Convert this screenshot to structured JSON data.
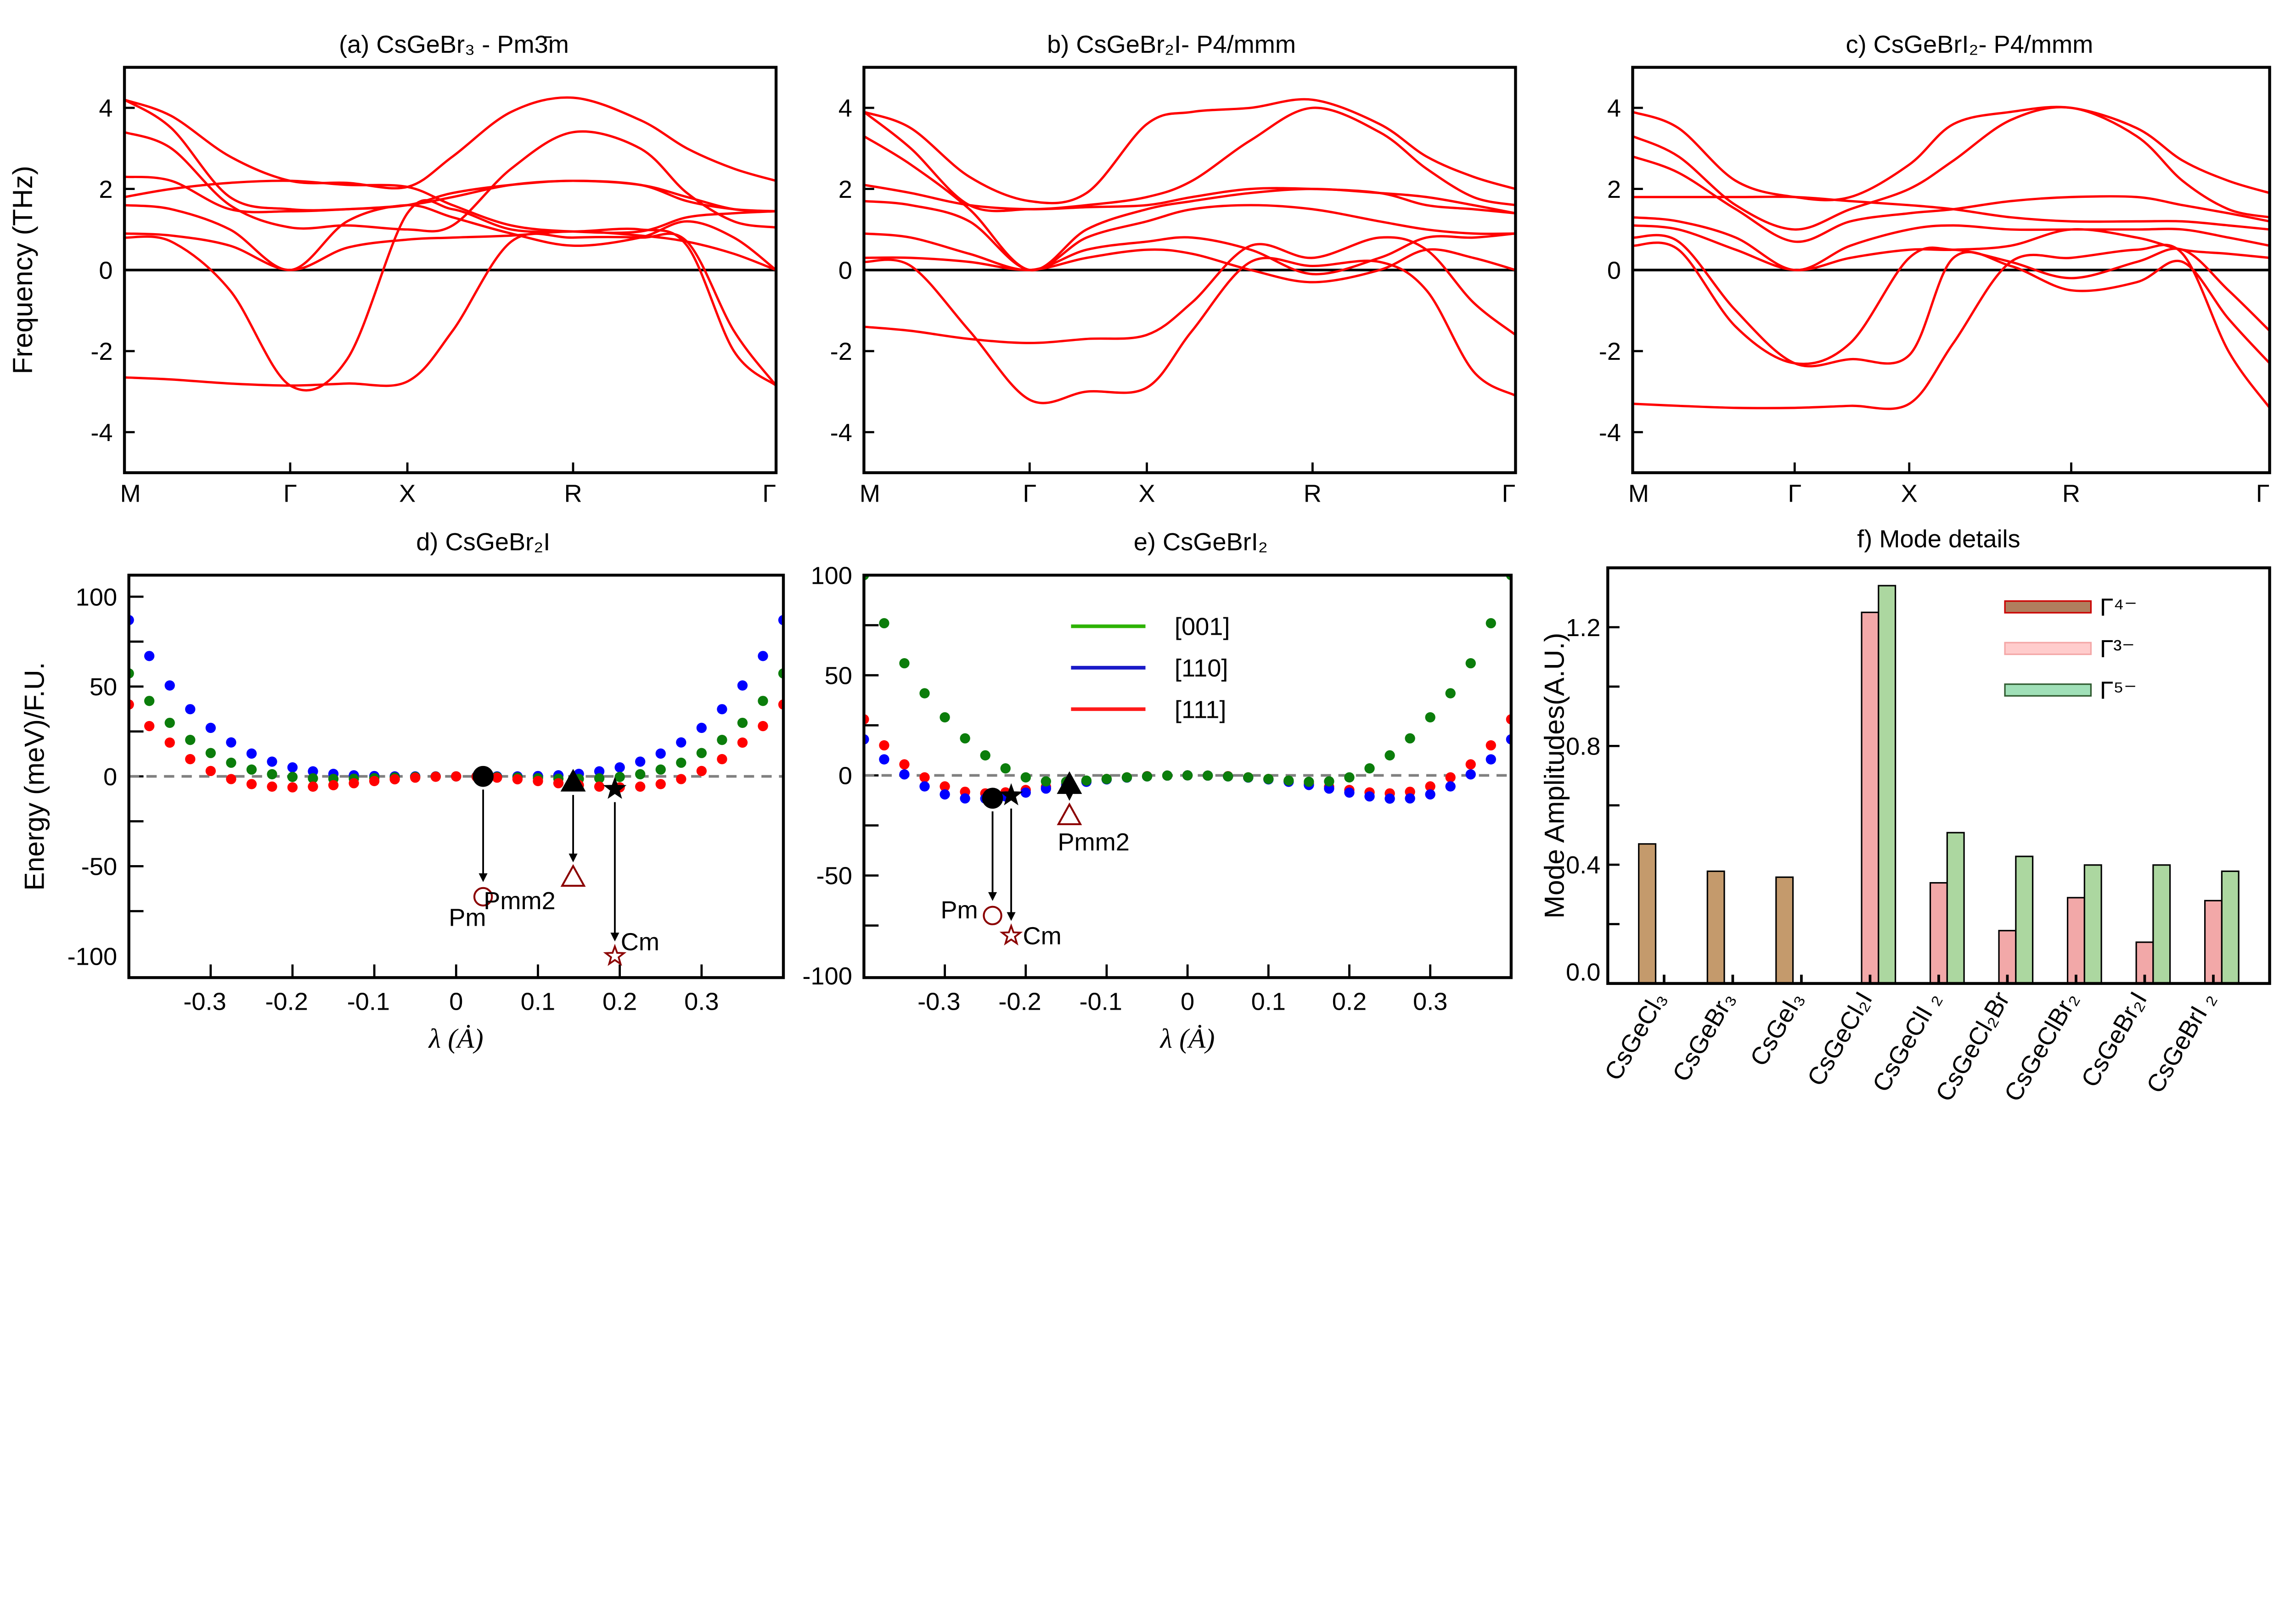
{
  "chart_data": [
    {
      "type": "line",
      "title": "(a) CsGeBr₃ - Pm3̄m",
      "ylabel": "Frequency (THz)",
      "xlabel": "",
      "ylim": [
        -5,
        5
      ],
      "yticks": [
        4,
        2,
        0,
        -2,
        -4
      ],
      "xticks": {
        "positions": [
          0,
          0.707,
          1.207,
          1.914,
          2.78
        ],
        "labels": [
          "M",
          "Γ",
          "X",
          "R",
          "Γ"
        ]
      },
      "k": [
        0,
        0.2,
        0.45,
        0.707,
        0.95,
        1.207,
        1.4,
        1.65,
        1.914,
        2.2,
        2.4,
        2.6,
        2.78
      ],
      "zero_line": true,
      "line_color": "#ff0000",
      "bands": [
        [
          4.2,
          3.8,
          2.8,
          2.2,
          2.15,
          2.05,
          2.8,
          3.9,
          4.25,
          3.7,
          3.0,
          2.5,
          2.2
        ],
        [
          4.2,
          3.5,
          1.8,
          1.5,
          1.5,
          1.6,
          1.9,
          2.1,
          2.2,
          2.1,
          1.8,
          1.5,
          1.45
        ],
        [
          3.4,
          3.0,
          1.6,
          1.05,
          1.1,
          1.0,
          1.1,
          2.5,
          3.4,
          3.0,
          1.9,
          1.2,
          1.05
        ],
        [
          2.3,
          2.2,
          1.5,
          1.45,
          1.5,
          1.6,
          1.8,
          2.1,
          2.2,
          2.1,
          1.7,
          1.5,
          1.45
        ],
        [
          1.8,
          2.0,
          2.15,
          2.2,
          2.1,
          2.05,
          1.6,
          1.1,
          0.95,
          0.95,
          1.3,
          1.4,
          1.45
        ],
        [
          1.6,
          1.5,
          1.0,
          0,
          1.2,
          1.6,
          1.3,
          0.9,
          0.6,
          0.8,
          1.2,
          0.8,
          0
        ],
        [
          0.9,
          0.85,
          0.6,
          0,
          0.55,
          0.75,
          0.8,
          0.85,
          0.95,
          0.85,
          0.7,
          0.4,
          0
        ],
        [
          0.8,
          0.7,
          -0.5,
          -2.85,
          -2.2,
          1.4,
          1.5,
          1.0,
          0.95,
          1.0,
          0.6,
          -2.0,
          -2.85
        ],
        [
          -2.65,
          -2.7,
          -2.8,
          -2.85,
          -2.8,
          -2.75,
          -1.5,
          0.7,
          0.8,
          0.8,
          0.7,
          -1.5,
          -2.85
        ]
      ]
    },
    {
      "type": "line",
      "title": "b) CsGeBr₂I- P4/mmm",
      "ylim": [
        -5,
        5
      ],
      "yticks": [
        4,
        2,
        0,
        -2,
        -4
      ],
      "xticks": {
        "positions": [
          0,
          0.707,
          1.207,
          1.914,
          2.78
        ],
        "labels": [
          "M",
          "Γ",
          "X",
          "R",
          "Γ"
        ]
      },
      "k": [
        0,
        0.2,
        0.45,
        0.707,
        0.95,
        1.207,
        1.4,
        1.65,
        1.914,
        2.2,
        2.4,
        2.6,
        2.78
      ],
      "zero_line": true,
      "line_color": "#ff0000",
      "bands": [
        [
          3.9,
          3.5,
          2.3,
          1.7,
          1.9,
          3.6,
          3.9,
          4.0,
          4.2,
          3.6,
          2.8,
          2.3,
          2.0
        ],
        [
          3.9,
          3.0,
          1.6,
          1.5,
          1.6,
          1.8,
          2.2,
          3.2,
          4.0,
          3.4,
          2.5,
          1.8,
          1.6
        ],
        [
          3.3,
          2.6,
          1.5,
          0,
          1.0,
          1.5,
          1.7,
          1.9,
          2.0,
          1.9,
          1.8,
          1.6,
          1.4
        ],
        [
          2.1,
          1.9,
          1.6,
          1.5,
          1.55,
          1.6,
          1.8,
          2.0,
          2.0,
          1.9,
          1.6,
          1.5,
          1.4
        ],
        [
          1.7,
          1.6,
          1.2,
          0,
          0.8,
          1.2,
          1.5,
          1.6,
          1.5,
          1.2,
          1.0,
          0.9,
          0.9
        ],
        [
          0.9,
          0.8,
          0.4,
          0,
          0.5,
          0.7,
          0.8,
          0.5,
          -0.1,
          0.3,
          0.8,
          0.8,
          0.9
        ],
        [
          0.3,
          0.3,
          0.2,
          0,
          0.3,
          0.5,
          0.4,
          0.0,
          -0.3,
          0.0,
          0.5,
          0.3,
          0
        ],
        [
          0.2,
          0.1,
          -1.5,
          -3.2,
          -3.0,
          -2.9,
          -1.5,
          0.2,
          0.1,
          0.2,
          -0.5,
          -2.5,
          -3.1
        ],
        [
          -1.4,
          -1.5,
          -1.7,
          -1.8,
          -1.7,
          -1.6,
          -0.8,
          0.6,
          0.3,
          0.8,
          0.5,
          -0.8,
          -1.6
        ]
      ]
    },
    {
      "type": "line",
      "title": "c) CsGeBrI₂- P4/mmm",
      "ylim": [
        -5,
        5
      ],
      "yticks": [
        4,
        2,
        0,
        -2,
        -4
      ],
      "xticks": {
        "positions": [
          0,
          0.707,
          1.207,
          1.914,
          2.78
        ],
        "labels": [
          "M",
          "Γ",
          "X",
          "R",
          "Γ"
        ]
      },
      "k": [
        0,
        0.2,
        0.45,
        0.707,
        0.95,
        1.207,
        1.4,
        1.65,
        1.914,
        2.2,
        2.4,
        2.6,
        2.78
      ],
      "zero_line": true,
      "line_color": "#ff0000",
      "bands": [
        [
          3.9,
          3.5,
          2.2,
          1.8,
          1.8,
          2.6,
          3.6,
          3.9,
          4.0,
          3.5,
          2.7,
          2.2,
          1.9
        ],
        [
          3.3,
          2.8,
          1.6,
          1.0,
          1.5,
          2.0,
          2.7,
          3.7,
          4.0,
          3.3,
          2.2,
          1.5,
          1.3
        ],
        [
          2.8,
          2.4,
          1.5,
          0.7,
          1.2,
          1.4,
          1.5,
          1.7,
          1.8,
          1.8,
          1.6,
          1.4,
          1.2
        ],
        [
          1.8,
          1.8,
          1.8,
          1.8,
          1.7,
          1.6,
          1.5,
          1.3,
          1.2,
          1.2,
          1.2,
          1.1,
          1.0
        ],
        [
          1.3,
          1.2,
          0.8,
          0,
          0.6,
          1.0,
          1.1,
          1.0,
          1.0,
          1.0,
          1.0,
          0.8,
          0.6
        ],
        [
          1.1,
          1.0,
          0.5,
          0,
          0.3,
          0.5,
          0.5,
          0.6,
          1.0,
          0.8,
          0.5,
          0.4,
          0.3
        ],
        [
          0.8,
          0.7,
          -1.0,
          -2.3,
          -2.2,
          -2.1,
          0.3,
          0.1,
          -0.5,
          -0.3,
          0.2,
          -1.2,
          -2.3
        ],
        [
          0.6,
          0.5,
          -1.4,
          -2.3,
          -1.8,
          0.3,
          0.5,
          0.2,
          -0.2,
          0.2,
          0.5,
          -0.5,
          -1.5
        ],
        [
          -3.3,
          -3.35,
          -3.4,
          -3.4,
          -3.35,
          -3.3,
          -1.8,
          0.2,
          0.3,
          0.5,
          0.4,
          -2.0,
          -3.4
        ]
      ]
    },
    {
      "type": "scatter",
      "title": "d) CsGeBr₂I",
      "xlabel": "λ  (Ȧ)",
      "ylabel": "Energy (meV)/F.U.",
      "xlim": [
        -0.4,
        0.4
      ],
      "ylim": [
        -112,
        112
      ],
      "xticks": [
        -0.3,
        -0.2,
        -0.1,
        0,
        0.1,
        0.2,
        0.3
      ],
      "yticks": [
        100,
        50,
        0,
        -50,
        -100
      ],
      "reference_line": 0,
      "x": [
        -0.4,
        -0.375,
        -0.35,
        -0.325,
        -0.3,
        -0.275,
        -0.25,
        -0.225,
        -0.2,
        -0.175,
        -0.15,
        -0.125,
        -0.1,
        -0.075,
        -0.05,
        -0.025,
        0,
        0.025,
        0.05,
        0.075,
        0.1,
        0.125,
        0.15,
        0.175,
        0.2,
        0.225,
        0.25,
        0.275,
        0.3,
        0.325,
        0.35,
        0.375,
        0.4
      ],
      "series": [
        {
          "color": "#0000ff",
          "values": [
            87.0,
            67.0,
            50.6,
            37.4,
            27.0,
            18.9,
            12.7,
            8.2,
            5.0,
            2.8,
            1.4,
            0.6,
            0.2,
            0,
            0,
            0,
            0,
            0,
            0,
            0,
            0.2,
            0.6,
            1.4,
            2.8,
            5.0,
            8.2,
            12.7,
            18.9,
            27.0,
            37.4,
            50.6,
            67.0,
            87.0
          ]
        },
        {
          "color": "#0b7d0b",
          "values": [
            57.3,
            42.0,
            29.8,
            20.3,
            13.0,
            7.6,
            3.8,
            1.2,
            -0.3,
            -1.1,
            -1.4,
            -1.3,
            -1.0,
            -0.6,
            -0.3,
            -0.1,
            0,
            -0.1,
            -0.3,
            -0.6,
            -1.0,
            -1.3,
            -1.4,
            -1.1,
            -0.3,
            1.2,
            3.8,
            7.6,
            13.0,
            20.3,
            29.8,
            42.0,
            57.3
          ]
        },
        {
          "color": "#ff0000",
          "values": [
            40,
            28,
            18.8,
            9.6,
            3.0,
            -1.5,
            -4.3,
            -5.7,
            -6.1,
            -5.7,
            -4.9,
            -3.8,
            -2.6,
            -1.6,
            -0.7,
            -0.2,
            0,
            -0.2,
            -0.7,
            -1.6,
            -2.6,
            -3.8,
            -4.9,
            -5.7,
            -6.1,
            -5.7,
            -4.3,
            -1.5,
            3.0,
            9.6,
            18.8,
            28,
            40
          ]
        }
      ],
      "annotations": [
        {
          "label": "Pm",
          "marker": "circle",
          "from": [
            0.033,
            0
          ],
          "to": [
            0.033,
            -67
          ]
        },
        {
          "label": "Pmm2",
          "marker": "triangle",
          "from": [
            0.143,
            -3
          ],
          "to": [
            0.143,
            -56
          ]
        },
        {
          "label": "Cm",
          "marker": "star",
          "from": [
            0.194,
            -7
          ],
          "to": [
            0.194,
            -100
          ]
        }
      ],
      "marker_color": "#8b0000"
    },
    {
      "type": "scatter",
      "title": "e) CsGeBrI₂",
      "xlabel": "λ  (Ȧ)",
      "xlim": [
        -0.4,
        0.4
      ],
      "ylim": [
        -101,
        100
      ],
      "xticks": [
        -0.3,
        -0.2,
        -0.1,
        0,
        0.1,
        0.2,
        0.3
      ],
      "yticks": [
        100,
        50,
        0,
        -50,
        -100
      ],
      "reference_line": 0,
      "x": [
        -0.4,
        -0.375,
        -0.35,
        -0.325,
        -0.3,
        -0.275,
        -0.25,
        -0.225,
        -0.2,
        -0.175,
        -0.15,
        -0.125,
        -0.1,
        -0.075,
        -0.05,
        -0.025,
        0,
        0.025,
        0.05,
        0.075,
        0.1,
        0.125,
        0.15,
        0.175,
        0.2,
        0.225,
        0.25,
        0.275,
        0.3,
        0.325,
        0.35,
        0.375,
        0.4
      ],
      "series": [
        {
          "name": "[111]",
          "color": "#ff0000",
          "legend_color": "#ff1a1a",
          "values": [
            28,
            15,
            5.5,
            -1.0,
            -5.5,
            -8.2,
            -9,
            -8.5,
            -7.3,
            -5.7,
            -4.2,
            -2.9,
            -1.8,
            -1,
            -0.4,
            -0.1,
            0,
            -0.1,
            -0.4,
            -1,
            -1.8,
            -2.9,
            -4.2,
            -5.7,
            -7.3,
            -8.5,
            -9,
            -8.2,
            -5.5,
            -1.0,
            5.5,
            15,
            28
          ]
        },
        {
          "name": "[110]",
          "color": "#0000ff",
          "legend_color": "#1a1ac8",
          "values": [
            18,
            8,
            0.5,
            -5.5,
            -9.5,
            -11.5,
            -11.6,
            -10.5,
            -8.6,
            -6.6,
            -4.8,
            -3.2,
            -2.0,
            -1.1,
            -0.5,
            -0.1,
            0,
            -0.1,
            -0.5,
            -1.1,
            -2.0,
            -3.2,
            -4.8,
            -6.6,
            -8.6,
            -10.5,
            -11.6,
            -11.5,
            -9.5,
            -5.5,
            0.5,
            8,
            18
          ]
        },
        {
          "name": "[001]",
          "color": "#0b7d0b",
          "legend_color": "#2db300",
          "values": [
            100,
            76,
            56,
            41,
            29,
            18.5,
            10,
            3.5,
            -1.0,
            -3.0,
            -3.2,
            -2.6,
            -1.8,
            -1.0,
            -0.5,
            -0.1,
            0,
            -0.1,
            -0.5,
            -1.0,
            -1.8,
            -2.6,
            -3.2,
            -3.0,
            -1.0,
            3.5,
            10,
            18.5,
            29,
            41,
            56,
            76,
            100
          ]
        }
      ],
      "legend_order": [
        2,
        1,
        0
      ],
      "legend_position": "top-center",
      "annotations": [
        {
          "label": "Pm",
          "marker": "circle",
          "from": [
            -0.241,
            -11.4
          ],
          "to": [
            -0.241,
            -70
          ]
        },
        {
          "label": "Cm",
          "marker": "star",
          "from": [
            -0.218,
            -10
          ],
          "to": [
            -0.218,
            -80
          ]
        },
        {
          "label": "Pmm2",
          "marker": "triangle",
          "from": [
            -0.146,
            -4.4
          ],
          "to": [
            -0.146,
            -20
          ]
        }
      ],
      "marker_color": "#8b0000"
    },
    {
      "type": "bar",
      "title": "f) Mode details",
      "ylabel": "Mode Amplitudes(A.U.)",
      "ylim": [
        0,
        1.4
      ],
      "yticks": [
        0,
        0.2,
        0.4,
        0.6,
        0.8,
        1.0,
        1.2
      ],
      "ytick_labels": [
        "0.0",
        "",
        "0.4",
        "",
        "0.8",
        "",
        "1.2"
      ],
      "categories": [
        "CsGeCl₃",
        "CsGeBr₃",
        "CsGeI₃",
        "CsGeCl₂I",
        "CsGeClI ₂",
        "CsGeCl₂Br",
        "CsGeClBr₂",
        "CsGeBr₂I",
        "CsGeBrI ₂"
      ],
      "legend_position": "top-right",
      "series": [
        {
          "name": "Γ⁴⁻",
          "color": "#c49a6c",
          "legend_fill": "#b07e5e",
          "legend_border": "#cc0000",
          "values": [
            0.47,
            0.378,
            0.358,
            null,
            null,
            null,
            null,
            null,
            null
          ]
        },
        {
          "name": "Γ³⁻",
          "color": "#f2a8a8",
          "legend_fill": "#ffcccc",
          "legend_border": "#f4a6a6",
          "values": [
            null,
            null,
            null,
            1.25,
            0.339,
            0.178,
            0.289,
            0.139,
            0.279
          ]
        },
        {
          "name": "Γ⁵⁻",
          "color": "#acd7a0",
          "legend_fill": "#a0e0b8",
          "legend_border": "#2f5a2f",
          "values": [
            null,
            null,
            null,
            1.34,
            0.508,
            0.428,
            0.399,
            0.399,
            0.378
          ]
        }
      ]
    }
  ]
}
